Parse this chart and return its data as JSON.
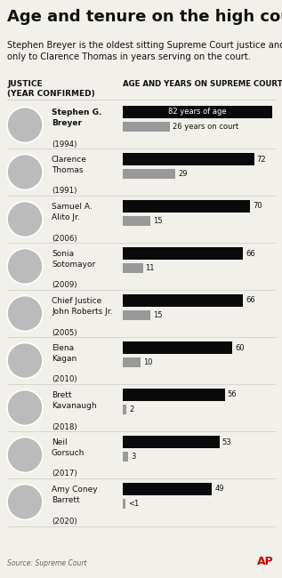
{
  "title": "Age and tenure on the high court",
  "subtitle": "Stephen Breyer is the oldest sitting Supreme Court justice and is second\nonly to Clarence Thomas in years serving on the court.",
  "col_header_left": "JUSTICE\n(YEAR CONFIRMED)",
  "col_header_right": "AGE AND YEARS ON SUPREME COURT",
  "source": "Source: Supreme Court",
  "justices": [
    {
      "name": "Stephen G.\nBreyer",
      "year": "(1994)",
      "age": 82,
      "years_on_court": 26,
      "age_label": "82 years of age",
      "court_label": "26 years on court",
      "bold": true
    },
    {
      "name": "Clarence\nThomas",
      "year": "(1991)",
      "age": 72,
      "years_on_court": 29,
      "age_label": "72",
      "court_label": "29",
      "bold": false
    },
    {
      "name": "Samuel A.\nAlito Jr.",
      "year": "(2006)",
      "age": 70,
      "years_on_court": 15,
      "age_label": "70",
      "court_label": "15",
      "bold": false
    },
    {
      "name": "Sonia\nSotomayor",
      "year": "(2009)",
      "age": 66,
      "years_on_court": 11,
      "age_label": "66",
      "court_label": "11",
      "bold": false
    },
    {
      "name": "Chief Justice\nJohn Roberts Jr.",
      "year": "(2005)",
      "age": 66,
      "years_on_court": 15,
      "age_label": "66",
      "court_label": "15",
      "bold": false
    },
    {
      "name": "Elena\nKagan",
      "year": "(2010)",
      "age": 60,
      "years_on_court": 10,
      "age_label": "60",
      "court_label": "10",
      "bold": false
    },
    {
      "name": "Brett\nKavanaugh",
      "year": "(2018)",
      "age": 56,
      "years_on_court": 2,
      "age_label": "56",
      "court_label": "2",
      "bold": false
    },
    {
      "name": "Neil\nGorsuch",
      "year": "(2017)",
      "age": 53,
      "years_on_court": 3,
      "age_label": "53",
      "court_label": "3",
      "bold": false
    },
    {
      "name": "Amy Coney\nBarrett",
      "year": "(2020)",
      "age": 49,
      "years_on_court": 0.4,
      "age_label": "49",
      "court_label": "<1",
      "bold": false
    }
  ],
  "bar_color_age": "#0a0a0a",
  "bar_color_years": "#999999",
  "max_age": 82,
  "background_color": "#f2f0eb",
  "title_fontsize": 13,
  "subtitle_fontsize": 7.2,
  "ap_logo_color": "#cc0000",
  "circle_color": "#bbbbbb",
  "separator_color": "#cccccc",
  "text_color": "#111111",
  "source_color": "#666666"
}
